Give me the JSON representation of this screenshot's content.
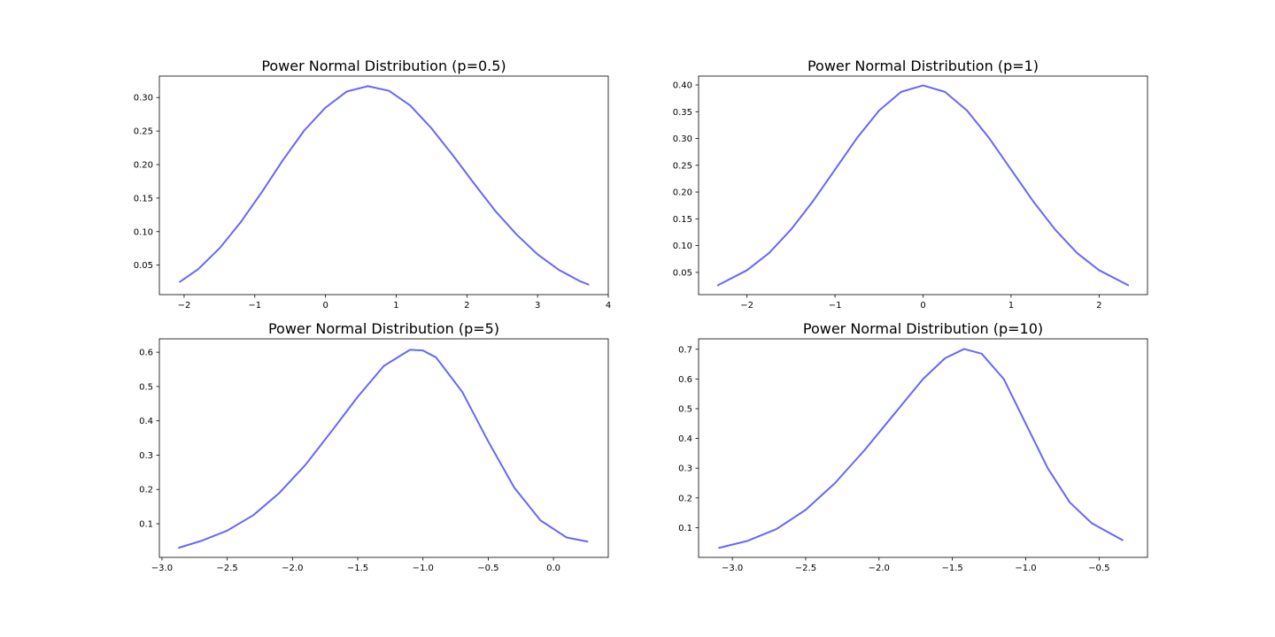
{
  "chart_data": [
    {
      "type": "line",
      "title": "Power Normal Distribution (p=0.5)",
      "xlabel": "",
      "ylabel": "",
      "xlim": [
        -2.35,
        4.0
      ],
      "ylim": [
        0.006,
        0.332
      ],
      "xticks": [
        -2,
        -1,
        0,
        1,
        2,
        3,
        4
      ],
      "xtick_labels": [
        "−2",
        "−1",
        "0",
        "1",
        "2",
        "3",
        "4"
      ],
      "yticks": [
        0.05,
        0.1,
        0.15,
        0.2,
        0.25,
        0.3
      ],
      "ytick_labels": [
        "0.05",
        "0.10",
        "0.15",
        "0.20",
        "0.25",
        "0.30"
      ],
      "grid": false,
      "series": [
        {
          "color": "#6666ff",
          "x": [
            -2.06,
            -1.8,
            -1.5,
            -1.2,
            -0.9,
            -0.6,
            -0.3,
            0.0,
            0.3,
            0.6,
            0.9,
            1.2,
            1.5,
            1.8,
            2.1,
            2.4,
            2.7,
            3.0,
            3.3,
            3.6,
            3.72
          ],
          "y": [
            0.025,
            0.044,
            0.075,
            0.114,
            0.159,
            0.207,
            0.251,
            0.285,
            0.309,
            0.317,
            0.31,
            0.288,
            0.254,
            0.214,
            0.172,
            0.131,
            0.096,
            0.066,
            0.043,
            0.026,
            0.021
          ]
        }
      ]
    },
    {
      "type": "line",
      "title": "Power Normal Distribution (p=1)",
      "xlabel": "",
      "ylabel": "",
      "xlim": [
        -2.55,
        2.55
      ],
      "ylim": [
        0.0085,
        0.4165
      ],
      "xticks": [
        -2,
        -1,
        0,
        1,
        2
      ],
      "xtick_labels": [
        "−2",
        "−1",
        "0",
        "1",
        "2"
      ],
      "yticks": [
        0.05,
        0.1,
        0.15,
        0.2,
        0.25,
        0.3,
        0.35,
        0.4
      ],
      "ytick_labels": [
        "0.05",
        "0.10",
        "0.15",
        "0.20",
        "0.25",
        "0.30",
        "0.35",
        "0.40"
      ],
      "grid": false,
      "series": [
        {
          "color": "#6666ff",
          "x": [
            -2.33,
            -2.0,
            -1.75,
            -1.5,
            -1.25,
            -1.0,
            -0.75,
            -0.5,
            -0.25,
            0.0,
            0.25,
            0.5,
            0.75,
            1.0,
            1.25,
            1.5,
            1.75,
            2.0,
            2.33
          ],
          "y": [
            0.026,
            0.054,
            0.086,
            0.13,
            0.183,
            0.242,
            0.301,
            0.352,
            0.387,
            0.399,
            0.387,
            0.352,
            0.301,
            0.242,
            0.183,
            0.13,
            0.086,
            0.054,
            0.026
          ]
        }
      ]
    },
    {
      "type": "line",
      "title": "Power Normal Distribution (p=5)",
      "xlabel": "",
      "ylabel": "",
      "xlim": [
        -3.02,
        0.42
      ],
      "ylim": [
        0.002,
        0.639
      ],
      "xticks": [
        -3.0,
        -2.5,
        -2.0,
        -1.5,
        -1.0,
        -0.5,
        0.0
      ],
      "xtick_labels": [
        "−3.0",
        "−2.5",
        "−2.0",
        "−1.5",
        "−1.0",
        "−0.5",
        "0.0"
      ],
      "yticks": [
        0.1,
        0.2,
        0.3,
        0.4,
        0.5,
        0.6
      ],
      "ytick_labels": [
        "0.1",
        "0.2",
        "0.3",
        "0.4",
        "0.5",
        "0.6"
      ],
      "grid": false,
      "series": [
        {
          "color": "#6666ff",
          "x": [
            -2.87,
            -2.7,
            -2.5,
            -2.3,
            -2.1,
            -1.9,
            -1.7,
            -1.5,
            -1.3,
            -1.1,
            -1.0,
            -0.9,
            -0.7,
            -0.5,
            -0.3,
            -0.1,
            0.1,
            0.26
          ],
          "y": [
            0.03,
            0.05,
            0.08,
            0.125,
            0.19,
            0.272,
            0.37,
            0.47,
            0.56,
            0.607,
            0.605,
            0.585,
            0.485,
            0.34,
            0.205,
            0.11,
            0.06,
            0.048
          ]
        }
      ]
    },
    {
      "type": "line",
      "title": "Power Normal Distribution (p=10)",
      "xlabel": "",
      "ylabel": "",
      "xlim": [
        -3.23,
        -0.17
      ],
      "ylim": [
        0.0,
        0.735
      ],
      "xticks": [
        -3.0,
        -2.5,
        -2.0,
        -1.5,
        -1.0,
        -0.5
      ],
      "xtick_labels": [
        "−3.0",
        "−2.5",
        "−2.0",
        "−1.5",
        "−1.0",
        "−0.5"
      ],
      "yticks": [
        0.1,
        0.2,
        0.3,
        0.4,
        0.5,
        0.6,
        0.7
      ],
      "ytick_labels": [
        "0.1",
        "0.2",
        "0.3",
        "0.4",
        "0.5",
        "0.6",
        "0.7"
      ],
      "grid": false,
      "series": [
        {
          "color": "#6666ff",
          "x": [
            -3.09,
            -2.9,
            -2.7,
            -2.5,
            -2.3,
            -2.1,
            -1.9,
            -1.7,
            -1.55,
            -1.42,
            -1.3,
            -1.15,
            -1.0,
            -0.85,
            -0.7,
            -0.55,
            -0.34
          ],
          "y": [
            0.032,
            0.055,
            0.095,
            0.16,
            0.25,
            0.36,
            0.48,
            0.6,
            0.67,
            0.701,
            0.685,
            0.6,
            0.45,
            0.3,
            0.185,
            0.115,
            0.058
          ]
        }
      ]
    }
  ]
}
